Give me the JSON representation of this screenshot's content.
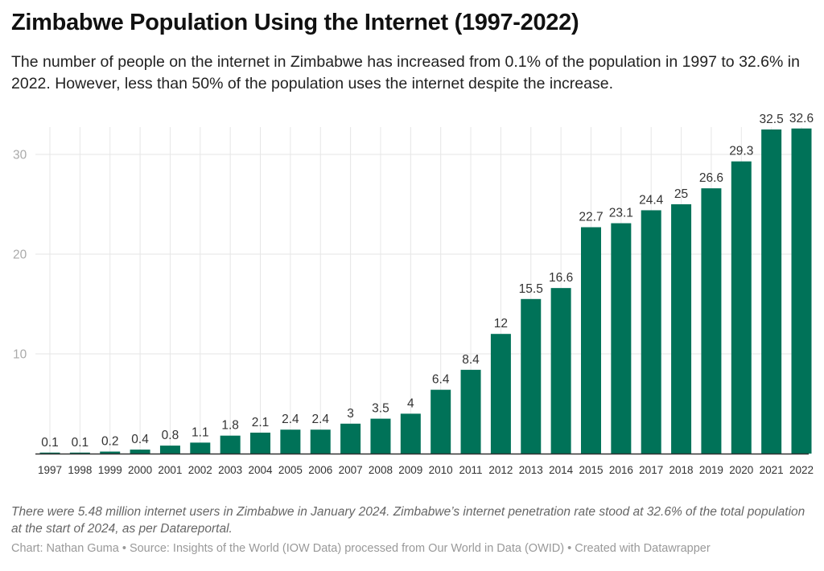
{
  "header": {
    "title": "Zimbabwe Population Using the Internet (1997-2022)",
    "subtitle": "The number of people on the internet in Zimbabwe has increased from 0.1% of the population in 1997 to 32.6% in 2022. However, less than 50% of the population uses the internet despite the increase."
  },
  "footer": {
    "notes": "There were 5.48 million internet users in Zimbabwe in January 2024. Zimbabwe’s internet penetration rate stood at 32.6% of the total population at the start of 2024, as per Datareportal.",
    "chart_credit": "Chart: Nathan Guma",
    "separator": " • ",
    "source": "Source: Insights of the World (IOW Data) processed from Our World in Data (OWID)",
    "created_with": "Created with Datawrapper"
  },
  "colors": {
    "bar": "#007258",
    "grid": "#e6e6e6",
    "baseline": "#333333"
  },
  "chart_data": {
    "type": "bar",
    "title": "Zimbabwe Population Using the Internet (1997-2022)",
    "xlabel": "",
    "ylabel": "",
    "categories": [
      "1997",
      "1998",
      "1999",
      "2000",
      "2001",
      "2002",
      "2003",
      "2004",
      "2005",
      "2006",
      "2007",
      "2008",
      "2009",
      "2010",
      "2011",
      "2012",
      "2013",
      "2014",
      "2015",
      "2016",
      "2017",
      "2018",
      "2019",
      "2020",
      "2021",
      "2022"
    ],
    "values": [
      0.1,
      0.1,
      0.2,
      0.4,
      0.8,
      1.1,
      1.8,
      2.1,
      2.4,
      2.4,
      3,
      3.5,
      4,
      6.4,
      8.4,
      12,
      15.5,
      16.6,
      22.7,
      23.1,
      24.4,
      25,
      26.6,
      29.3,
      32.5,
      32.6
    ],
    "data_labels": [
      "0.1",
      "0.1",
      "0.2",
      "0.4",
      "0.8",
      "1.1",
      "1.8",
      "2.1",
      "2.4",
      "2.4",
      "3",
      "3.5",
      "4",
      "6.4",
      "8.4",
      "12",
      "15.5",
      "16.6",
      "22.7",
      "23.1",
      "24.4",
      "25",
      "26.6",
      "29.3",
      "32.5",
      "32.6"
    ],
    "yticks": [
      10,
      20,
      30
    ],
    "ytick_labels": [
      "10",
      "20",
      "30"
    ],
    "ylim": [
      0,
      32.6
    ],
    "grid": true,
    "legend": "none"
  }
}
